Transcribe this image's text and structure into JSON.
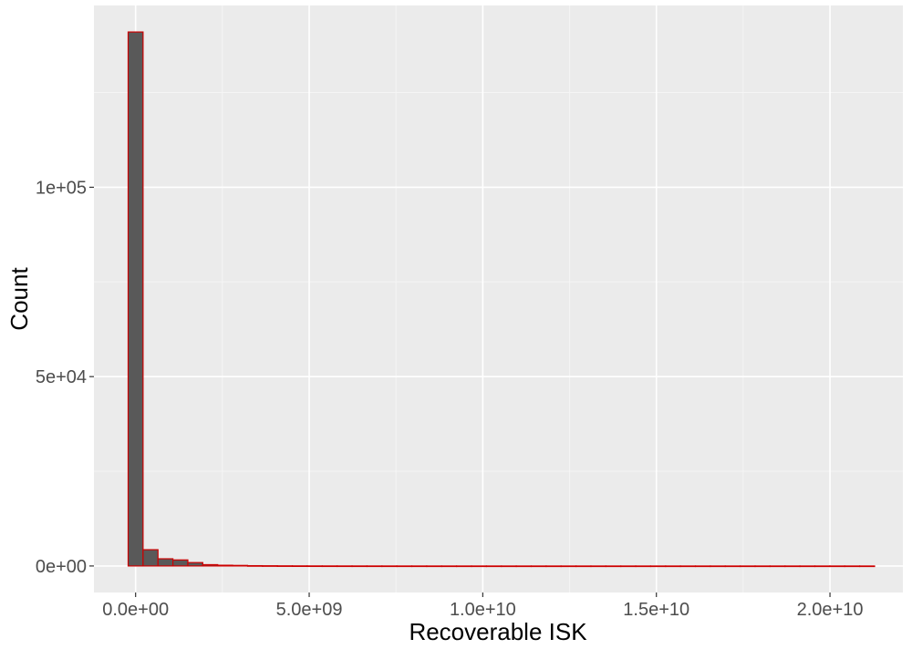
{
  "chart_data": {
    "type": "bar",
    "title": "",
    "xlabel": "Recoverable ISK",
    "ylabel": "Count",
    "xlim": [
      -1200000000.0,
      22100000000.0
    ],
    "ylim": [
      -7000,
      148000
    ],
    "x_ticks": [
      {
        "value": 0,
        "label": "0.0e+00"
      },
      {
        "value": 5000000000.0,
        "label": "5.0e+09"
      },
      {
        "value": 10000000000.0,
        "label": "1.0e+10"
      },
      {
        "value": 15000000000.0,
        "label": "1.5e+10"
      },
      {
        "value": 20000000000.0,
        "label": "2.0e+10"
      }
    ],
    "y_ticks": [
      {
        "value": 0,
        "label": "0e+00"
      },
      {
        "value": 50000,
        "label": "5e+04"
      },
      {
        "value": 100000,
        "label": "1e+05"
      }
    ],
    "bin_start": -215000000.0,
    "bin_width": 430000000.0,
    "values": [
      141000,
      4300,
      1900,
      1600,
      900,
      350,
      200,
      150,
      80,
      60,
      40,
      30,
      20,
      15,
      12,
      10,
      8,
      6,
      5,
      4,
      3,
      3,
      2,
      2,
      2,
      1,
      1,
      1,
      1,
      1,
      1,
      1,
      1,
      1,
      1,
      1,
      1,
      1,
      1,
      1,
      1,
      1,
      1,
      1,
      1,
      1,
      1,
      1,
      1,
      1
    ],
    "grid": true,
    "colors": {
      "panel": "#ebebeb",
      "grid_major": "#ffffff",
      "bar_fill": "#595959",
      "bar_outline": "#cc0000"
    }
  }
}
